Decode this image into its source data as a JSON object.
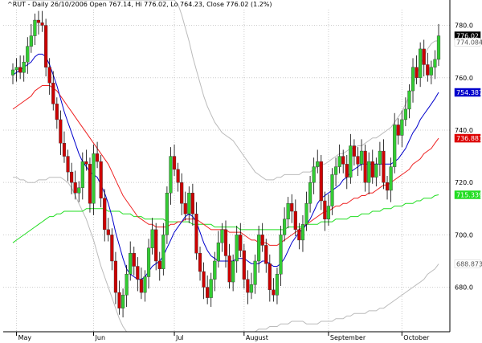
{
  "chart_data": {
    "type": "candlestick",
    "title": "^RUT - Daily 26/10/2006 Open 767.14, Hi 776.02, Lo 764.23, Close 776.02 (1.2%)",
    "ylim": [
      663,
      786
    ],
    "y_ticks": [
      680,
      700,
      720,
      740,
      760,
      780
    ],
    "y_tick_labels": [
      "680.0",
      "700.0",
      "720.0",
      "740.0",
      "760.0",
      "780.0"
    ],
    "x_labels": [
      {
        "label": "May",
        "index": 1
      },
      {
        "label": "Jun",
        "index": 22
      },
      {
        "label": "Jul",
        "index": 44
      },
      {
        "label": "August",
        "index": 63
      },
      {
        "label": "September",
        "index": 86
      },
      {
        "label": "October",
        "index": 106
      }
    ],
    "gridlines": true,
    "colors": {
      "up_candle": "#33cc33",
      "down_candle": "#cc0000",
      "wick": "#000000",
      "ma_short": "#0000cc",
      "ma_medium": "#ee2222",
      "ma_long": "#22dd22",
      "bollinger": "#bbbbbb",
      "grid": "#cccccc"
    },
    "tags": [
      {
        "value": "776.02",
        "price": 776.02,
        "bg": "#000000",
        "fg": "#ffffff"
      },
      {
        "value": "774.084",
        "price": 773.6,
        "bg": "#ffffff",
        "fg": "#555555"
      },
      {
        "value": "754.387",
        "price": 754.4,
        "bg": "#0000cc",
        "fg": "#ffffff"
      },
      {
        "value": "736.881",
        "price": 736.9,
        "bg": "#dd0000",
        "fg": "#ffffff"
      },
      {
        "value": "715.339",
        "price": 715.3,
        "bg": "#22dd22",
        "fg": "#ffffff"
      },
      {
        "value": "688.873",
        "price": 688.9,
        "bg": "#ffffff",
        "fg": "#555555"
      }
    ],
    "closes": [
      763,
      764,
      762,
      766,
      772,
      776,
      782,
      781,
      780,
      764,
      758,
      750,
      744,
      735,
      730,
      724,
      720,
      716,
      718,
      728,
      727,
      712,
      731,
      728,
      714,
      702,
      700,
      690,
      678,
      672,
      677,
      685,
      693,
      688,
      683,
      678,
      684,
      695,
      702,
      690,
      687,
      700,
      716,
      730,
      725,
      720,
      712,
      708,
      716,
      708,
      693,
      686,
      680,
      676,
      683,
      690,
      697,
      702,
      692,
      682,
      690,
      700,
      694,
      683,
      678,
      681,
      690,
      700,
      696,
      689,
      679,
      677,
      685,
      700,
      706,
      712,
      709,
      702,
      698,
      704,
      712,
      720,
      726,
      728,
      713,
      706,
      711,
      723,
      726,
      730,
      727,
      722,
      734,
      730,
      727,
      732,
      720,
      728,
      722,
      727,
      732,
      720,
      717,
      726,
      742,
      738,
      744,
      748,
      755,
      764,
      760,
      771,
      765,
      761,
      764,
      767,
      776
    ],
    "ma_short": [
      761,
      762,
      763,
      764,
      765,
      766,
      768,
      769,
      769,
      768,
      765,
      761,
      757,
      752,
      747,
      743,
      739,
      735,
      731,
      728,
      726,
      724,
      723,
      722,
      719,
      716,
      712,
      707,
      701,
      696,
      691,
      687,
      685,
      684,
      683,
      683,
      684,
      686,
      688,
      689,
      690,
      692,
      695,
      698,
      701,
      703,
      705,
      707,
      708,
      707,
      705,
      701,
      697,
      694,
      692,
      691,
      690,
      690,
      690,
      690,
      690,
      691,
      691,
      691,
      690,
      689,
      689,
      689,
      690,
      690,
      689,
      688,
      688,
      689,
      691,
      694,
      697,
      699,
      701,
      702,
      704,
      706,
      709,
      712,
      714,
      715,
      716,
      717,
      718,
      719,
      721,
      722,
      724,
      725,
      726,
      727,
      727,
      727,
      727,
      727,
      727,
      727,
      727,
      727,
      728,
      729,
      731,
      733,
      736,
      739,
      741,
      744,
      746,
      748,
      750,
      752,
      754.4
    ],
    "ma_medium": [
      748,
      749,
      750,
      751,
      752,
      753,
      755,
      756,
      757,
      757,
      757,
      756,
      755,
      753,
      751,
      749,
      747,
      745,
      743,
      741,
      739,
      737,
      735,
      733,
      731,
      729,
      727,
      724,
      721,
      718,
      715,
      713,
      711,
      709,
      707,
      706,
      705,
      704,
      704,
      703,
      703,
      703,
      703,
      704,
      704,
      705,
      705,
      706,
      706,
      706,
      706,
      705,
      704,
      703,
      702,
      702,
      702,
      702,
      702,
      701,
      701,
      701,
      701,
      700,
      699,
      698,
      698,
      697,
      697,
      697,
      696,
      696,
      696,
      697,
      698,
      699,
      700,
      701,
      702,
      703,
      704,
      705,
      706,
      707,
      708,
      709,
      709,
      710,
      711,
      711,
      712,
      712,
      713,
      714,
      714,
      715,
      715,
      716,
      716,
      717,
      718,
      719,
      719,
      720,
      721,
      722,
      723,
      724,
      725,
      727,
      728,
      729,
      731,
      732,
      733,
      735,
      736.9
    ],
    "ma_long": [
      697,
      698,
      699,
      700,
      701,
      702,
      703,
      704,
      705,
      706,
      707,
      707,
      708,
      708,
      709,
      709,
      709,
      709,
      709,
      709,
      710,
      710,
      710,
      710,
      710,
      710,
      709,
      709,
      709,
      709,
      708,
      708,
      708,
      707,
      707,
      707,
      706,
      706,
      706,
      706,
      706,
      706,
      705,
      705,
      705,
      705,
      705,
      705,
      705,
      704,
      704,
      704,
      704,
      704,
      704,
      703,
      703,
      703,
      703,
      703,
      703,
      703,
      702,
      702,
      702,
      702,
      702,
      702,
      702,
      702,
      702,
      702,
      702,
      702,
      702,
      703,
      703,
      703,
      703,
      703,
      704,
      704,
      704,
      704,
      705,
      705,
      705,
      705,
      706,
      706,
      706,
      706,
      707,
      707,
      707,
      708,
      708,
      708,
      709,
      709,
      709,
      710,
      710,
      710,
      711,
      711,
      711,
      712,
      712,
      712,
      713,
      713,
      714,
      714,
      714,
      715,
      715.3
    ],
    "bollinger_upper": [
      790,
      790,
      790,
      790,
      790,
      790,
      790,
      790,
      790,
      790,
      790,
      790,
      790,
      790,
      790,
      790,
      790,
      790,
      790,
      790,
      790,
      790,
      790,
      790,
      790,
      790,
      790,
      790,
      790,
      790,
      790,
      790,
      790,
      790,
      790,
      790,
      790,
      790,
      790,
      790,
      790,
      790,
      790,
      790,
      790,
      788,
      784,
      779,
      774,
      768,
      763,
      758,
      753,
      749,
      746,
      743,
      741,
      739,
      738,
      737,
      736,
      734,
      732,
      730,
      728,
      726,
      724,
      723,
      722,
      721,
      721,
      721,
      722,
      722,
      723,
      723,
      723,
      723,
      723,
      724,
      724,
      724,
      725,
      726,
      727,
      727,
      728,
      729,
      730,
      731,
      731,
      732,
      733,
      733,
      734,
      734,
      735,
      736,
      737,
      737,
      738,
      739,
      740,
      741,
      743,
      745,
      747,
      750,
      753,
      757,
      761,
      765,
      768,
      771,
      773,
      774,
      774.1
    ],
    "bollinger_lower": [
      722,
      722,
      721,
      721,
      720,
      720,
      720,
      721,
      721,
      721,
      722,
      722,
      722,
      722,
      721,
      720,
      718,
      715,
      712,
      709,
      706,
      702,
      698,
      693,
      688,
      684,
      680,
      676,
      672,
      668,
      665,
      663,
      663,
      663,
      663,
      663,
      663,
      663,
      663,
      663,
      663,
      663,
      663,
      663,
      663,
      663,
      663,
      663,
      663,
      663,
      663,
      663,
      663,
      663,
      663,
      663,
      663,
      663,
      663,
      663,
      663,
      663,
      663,
      663,
      663,
      663,
      663,
      664,
      664,
      664,
      665,
      665,
      665,
      666,
      666,
      666,
      667,
      667,
      667,
      667,
      666,
      666,
      666,
      666,
      667,
      667,
      667,
      667,
      668,
      668,
      668,
      669,
      669,
      670,
      670,
      670,
      670,
      671,
      671,
      671,
      672,
      672,
      673,
      674,
      675,
      676,
      677,
      678,
      679,
      680,
      681,
      682,
      683,
      685,
      686,
      687,
      688.9
    ]
  }
}
